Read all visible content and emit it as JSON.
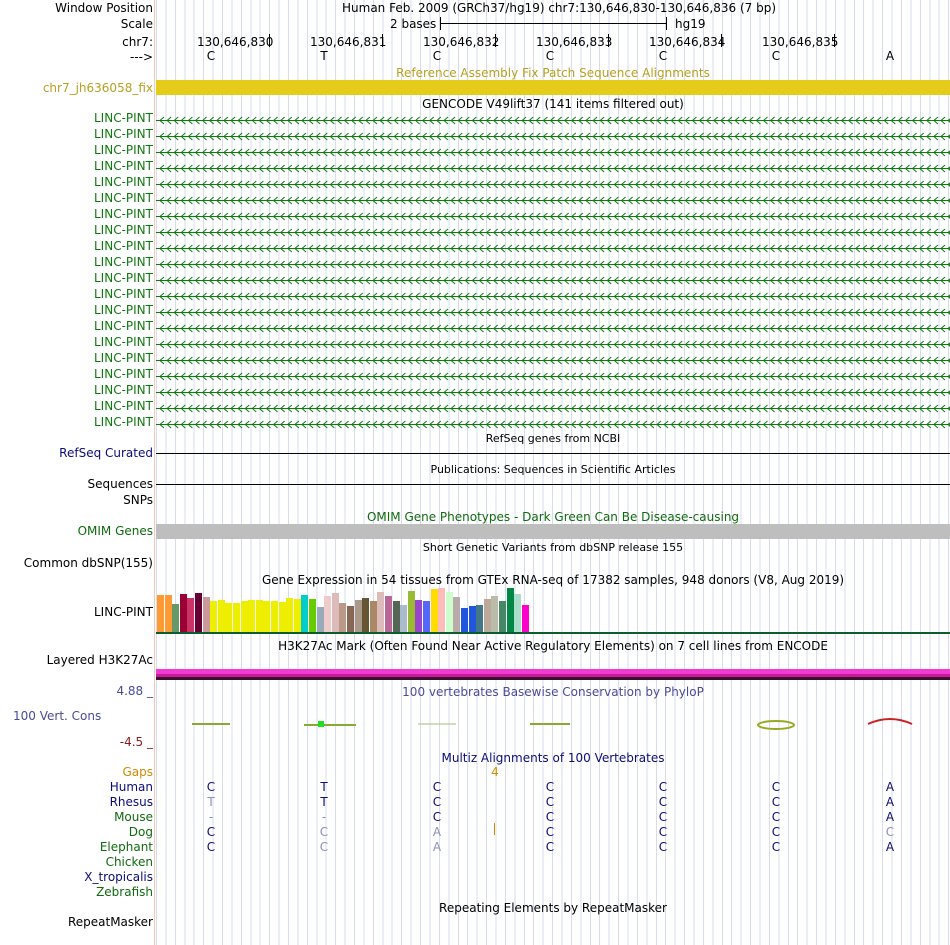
{
  "header": {
    "window_position_label": "Window Position",
    "scale_label": "Scale",
    "chrom_label": "chr7:",
    "strand_label": "--->",
    "assembly_text": "Human Feb. 2009 (GRCh37/hg19)   chr7:130,646,830-130,646,836 (7 bp)",
    "scale_text": "2 bases",
    "db_text": "hg19",
    "positions": [
      "130,646,830",
      "130,646,831",
      "130,646,832",
      "130,646,833",
      "130,646,834",
      "130,646,835"
    ],
    "bases": [
      "C",
      "T",
      "C",
      "C",
      "C",
      "C",
      "A"
    ]
  },
  "fix_track": {
    "title": "Reference Assembly Fix Patch Sequence Alignments",
    "label": "chr7_jh636058_fix",
    "color": "#e6cc1a"
  },
  "gencode": {
    "title": "GENCODE V49lift37 (141 items filtered out)",
    "items": [
      "LINC-PINT",
      "LINC-PINT",
      "LINC-PINT",
      "LINC-PINT",
      "LINC-PINT",
      "LINC-PINT",
      "LINC-PINT",
      "LINC-PINT",
      "LINC-PINT",
      "LINC-PINT",
      "LINC-PINT",
      "LINC-PINT",
      "LINC-PINT",
      "LINC-PINT",
      "LINC-PINT",
      "LINC-PINT",
      "LINC-PINT",
      "LINC-PINT",
      "LINC-PINT",
      "LINC-PINT"
    ],
    "color": "#0f7a0f"
  },
  "refseq": {
    "title": "RefSeq genes from NCBI",
    "label": "RefSeq Curated"
  },
  "publications": {
    "title": "Publications: Sequences in Scientific Articles",
    "label1": "Sequences",
    "label2": "SNPs"
  },
  "omim": {
    "title": "OMIM Gene Phenotypes - Dark Green Can Be Disease-causing",
    "label": "OMIM Genes"
  },
  "dbsnp": {
    "title": "Short Genetic Variants from dbSNP release 155",
    "label": "Common dbSNP(155)"
  },
  "gtex": {
    "title": "Gene Expression in 54 tissues from GTEx RNA-seq of 17382 samples, 948 donors (V8, Aug 2019)",
    "label": "LINC-PINT",
    "bars": [
      {
        "color": "#ff9933",
        "value": 0.82
      },
      {
        "color": "#ff9933",
        "value": 0.82
      },
      {
        "color": "#669966",
        "value": 0.62
      },
      {
        "color": "#990033",
        "value": 0.85
      },
      {
        "color": "#cc3366",
        "value": 0.76
      },
      {
        "color": "#660033",
        "value": 0.86
      },
      {
        "color": "#cc9999",
        "value": 0.78
      },
      {
        "color": "#eeee00",
        "value": 0.7
      },
      {
        "color": "#eeee00",
        "value": 0.72
      },
      {
        "color": "#eeee00",
        "value": 0.64
      },
      {
        "color": "#eeee00",
        "value": 0.65
      },
      {
        "color": "#eeee00",
        "value": 0.7
      },
      {
        "color": "#eeee00",
        "value": 0.72
      },
      {
        "color": "#eeee00",
        "value": 0.71
      },
      {
        "color": "#eeee00",
        "value": 0.7
      },
      {
        "color": "#eeee00",
        "value": 0.68
      },
      {
        "color": "#eeee00",
        "value": 0.67
      },
      {
        "color": "#eeee00",
        "value": 0.76
      },
      {
        "color": "#eeee00",
        "value": 0.73
      },
      {
        "color": "#00cccc",
        "value": 0.83
      },
      {
        "color": "#66cc00",
        "value": 0.73
      },
      {
        "color": "#99aabb",
        "value": 0.55
      },
      {
        "color": "#eecccc",
        "value": 0.8
      },
      {
        "color": "#ddbbbb",
        "value": 0.87
      },
      {
        "color": "#bb9988",
        "value": 0.65
      },
      {
        "color": "#886655",
        "value": 0.58
      },
      {
        "color": "#aa9988",
        "value": 0.71
      },
      {
        "color": "#665533",
        "value": 0.75
      },
      {
        "color": "#aa8866",
        "value": 0.7
      },
      {
        "color": "#ddbbbb",
        "value": 0.89
      },
      {
        "color": "#bb6699",
        "value": 0.81
      },
      {
        "color": "#556655",
        "value": 0.68
      },
      {
        "color": "#aabbcc",
        "value": 0.6
      },
      {
        "color": "#99bb33",
        "value": 0.9
      },
      {
        "color": "#9944cc",
        "value": 0.72
      },
      {
        "color": "#5566ff",
        "value": 0.68
      },
      {
        "color": "#ffdd00",
        "value": 0.96
      },
      {
        "color": "#ffbbbb",
        "value": 0.98
      },
      {
        "color": "#ccffcc",
        "value": 0.88
      },
      {
        "color": "#bbaaaa",
        "value": 0.78
      },
      {
        "color": "#2255dd",
        "value": 0.54
      },
      {
        "color": "#2255dd",
        "value": 0.57
      },
      {
        "color": "#447788",
        "value": 0.6
      },
      {
        "color": "#bbaa99",
        "value": 0.73
      },
      {
        "color": "#bbbbaa",
        "value": 0.8
      },
      {
        "color": "#448866",
        "value": 0.7
      },
      {
        "color": "#008844",
        "value": 0.98
      },
      {
        "color": "#aaddcc",
        "value": 0.84
      },
      {
        "color": "#ff00cc",
        "value": 0.6
      }
    ]
  },
  "h3k27ac": {
    "title": "H3K27Ac Mark (Often Found Near Active Regulatory Elements) on 7 cell lines from ENCODE",
    "label": "Layered H3K27Ac"
  },
  "conservation": {
    "title": "100 vertebrates Basewise Conservation by PhyloP",
    "label": "100 Vert. Cons",
    "max_label": "4.88 _",
    "min_label": "-4.5 _"
  },
  "multiz": {
    "title": "Multiz Alignments of 100 Vertebrates",
    "gaps_label": "Gaps",
    "gap_value": "4",
    "species": [
      {
        "name": "Human",
        "bases": [
          "C",
          "T",
          "C",
          "C",
          "C",
          "C",
          "A"
        ]
      },
      {
        "name": "Rhesus",
        "bases": [
          "T",
          "T",
          "C",
          "C",
          "C",
          "C",
          "A"
        ]
      },
      {
        "name": "Mouse",
        "bases": [
          "-",
          "-",
          "C",
          "C",
          "C",
          "C",
          "A"
        ]
      },
      {
        "name": "Dog",
        "bases": [
          "C",
          "C",
          "A",
          "C",
          "C",
          "C",
          "C"
        ]
      },
      {
        "name": "Elephant",
        "bases": [
          "C",
          "C",
          "A",
          "C",
          "C",
          "C",
          "A"
        ]
      },
      {
        "name": "Chicken",
        "bases": [
          "",
          "",
          "",
          "",
          "",
          "",
          ""
        ]
      },
      {
        "name": "X_tropicalis",
        "bases": [
          "",
          "",
          "",
          "",
          "",
          "",
          ""
        ]
      },
      {
        "name": "Zebrafish",
        "bases": [
          "",
          "",
          "",
          "",
          "",
          "",
          ""
        ]
      }
    ]
  },
  "repeatmasker": {
    "title": "Repeating Elements by RepeatMasker",
    "label": "RepeatMasker"
  }
}
